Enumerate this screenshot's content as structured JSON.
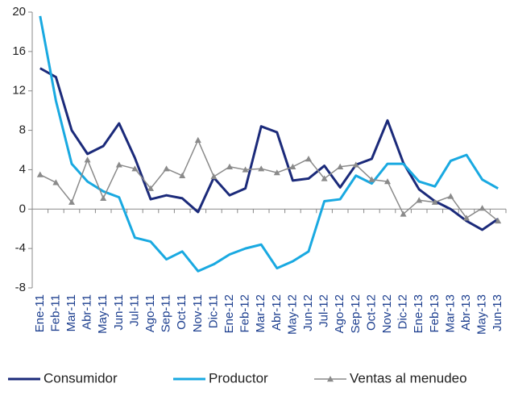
{
  "chart_data": {
    "type": "line",
    "categories": [
      "Ene-11",
      "Feb-11",
      "Mar-11",
      "Abr-11",
      "May-11",
      "Jun-11",
      "Jul-11",
      "Ago-11",
      "Sep-11",
      "Oct-11",
      "Nov-11",
      "Dic-11",
      "Ene-12",
      "Feb-12",
      "Mar-12",
      "Abr-12",
      "May-12",
      "Jun-12",
      "Jul-12",
      "Ago-12",
      "Sep-12",
      "Oct-12",
      "Nov-12",
      "Dic-12",
      "Ene-13",
      "Feb-13",
      "Mar-13",
      "Abr-13",
      "May-13",
      "Jun-13"
    ],
    "series": [
      {
        "name": "Consumidor",
        "color": "#1b2a7a",
        "values": [
          14.3,
          13.4,
          8,
          5.6,
          6.4,
          8.7,
          5.2,
          1,
          1.4,
          1.1,
          -0.3,
          3.2,
          1.4,
          2.1,
          8.4,
          7.8,
          2.9,
          3.1,
          4.4,
          2.2,
          4.5,
          5.1,
          9,
          4.7,
          2,
          0.8,
          0,
          -1.2,
          -2.1,
          -1
        ]
      },
      {
        "name": "Productor",
        "color": "#19a9e1",
        "values": [
          19.6,
          11,
          4.6,
          2.8,
          1.8,
          1.2,
          -2.9,
          -3.3,
          -5.1,
          -4.3,
          -6.3,
          -5.6,
          -4.6,
          -4,
          -3.6,
          -6,
          -5.3,
          -4.3,
          0.8,
          1,
          3.4,
          2.6,
          4.6,
          4.6,
          2.8,
          2.3,
          4.9,
          5.5,
          3,
          2.1
        ]
      },
      {
        "name": "Ventas al menudeo",
        "color": "#8a8a8a",
        "marker": "triangle",
        "values": [
          3.5,
          2.7,
          0.7,
          5,
          1.1,
          4.5,
          4.1,
          2.1,
          4.1,
          3.4,
          7,
          3.3,
          4.3,
          4,
          4.1,
          3.7,
          4.3,
          5.1,
          3.1,
          4.3,
          4.5,
          3,
          2.8,
          -0.5,
          0.9,
          0.7,
          1.3,
          -0.9,
          0.1,
          -1.2
        ]
      }
    ],
    "ylim": [
      -8,
      20
    ],
    "yticks": [
      20,
      16,
      12,
      8,
      4,
      0,
      -4,
      -8
    ],
    "grid": false,
    "legend": "bottom"
  }
}
